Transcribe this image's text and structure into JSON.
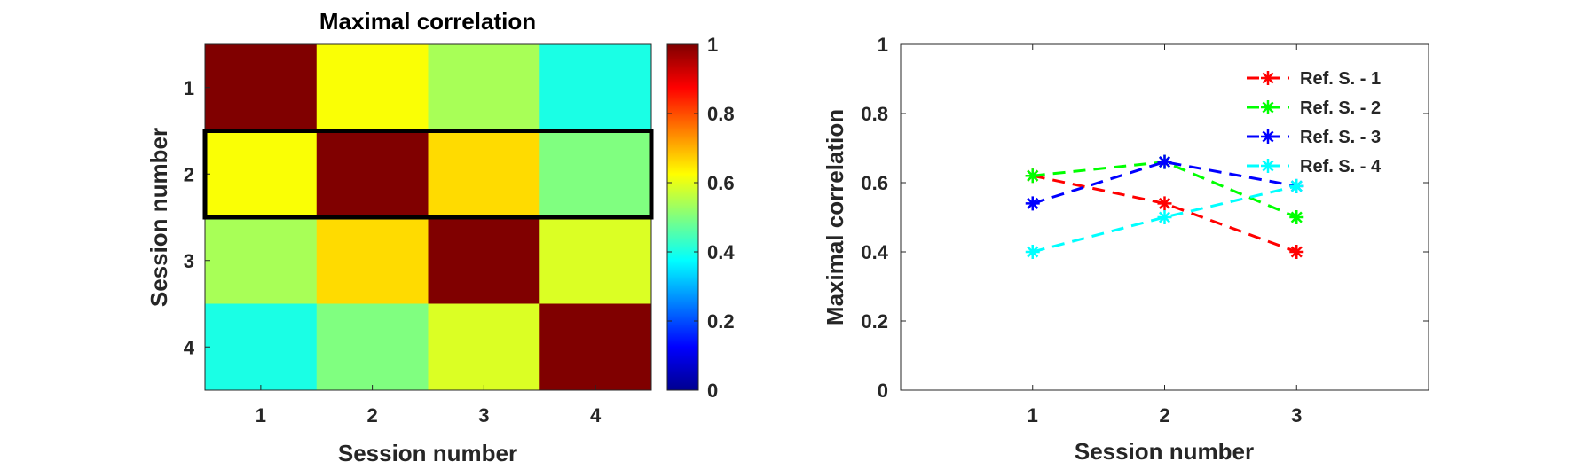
{
  "chart_data": [
    {
      "type": "heatmap",
      "title": "Maximal correlation",
      "xlabel": "Session number",
      "ylabel": "Session number",
      "x_categories": [
        "1",
        "2",
        "3",
        "4"
      ],
      "y_categories": [
        "1",
        "2",
        "3",
        "4"
      ],
      "values": [
        [
          1.0,
          0.62,
          0.54,
          0.4
        ],
        [
          0.62,
          1.0,
          0.66,
          0.5
        ],
        [
          0.54,
          0.66,
          1.0,
          0.59
        ],
        [
          0.4,
          0.5,
          0.59,
          1.0
        ]
      ],
      "colorbar": {
        "range": [
          0,
          1
        ],
        "colormap": "jet",
        "tick_labels": [
          "0",
          "0.2",
          "0.4",
          "0.6",
          "0.8",
          "1"
        ]
      },
      "highlight_row": "2",
      "highlight_color": "#000000"
    },
    {
      "type": "line",
      "xlabel": "Session number",
      "ylabel": "Maximal correlation",
      "x": [
        1,
        2,
        3
      ],
      "xlim": [
        0,
        4
      ],
      "ylim": [
        0,
        1
      ],
      "x_tick_labels": [
        "1",
        "2",
        "3"
      ],
      "y_tick_labels": [
        "0",
        "0.2",
        "0.4",
        "0.6",
        "0.8",
        "1"
      ],
      "legend_position": "top-right",
      "line_style": "dashed",
      "marker": "asterisk",
      "series": [
        {
          "name": "Ref. S. - 1",
          "color": "#ff0000",
          "values": [
            0.62,
            0.54,
            0.4
          ]
        },
        {
          "name": "Ref. S. - 2",
          "color": "#00ff00",
          "values": [
            0.62,
            0.66,
            0.5
          ]
        },
        {
          "name": "Ref. S. - 3",
          "color": "#0000ff",
          "values": [
            0.54,
            0.66,
            0.59
          ]
        },
        {
          "name": "Ref. S. - 4",
          "color": "#00ffff",
          "values": [
            0.4,
            0.5,
            0.59
          ]
        }
      ]
    }
  ]
}
